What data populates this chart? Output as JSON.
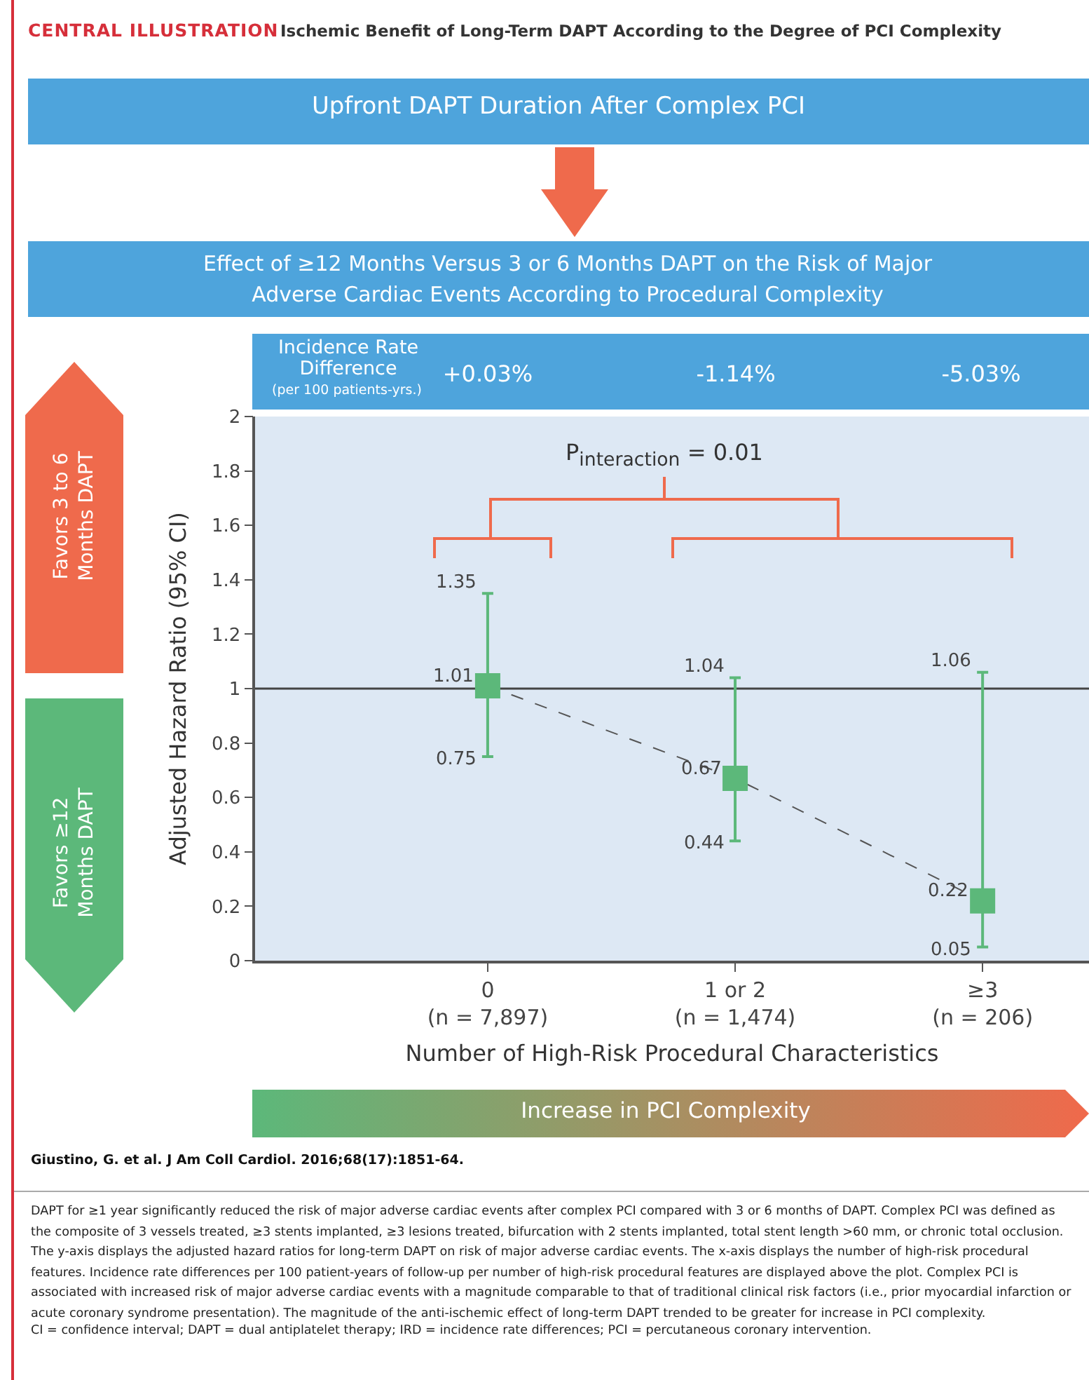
{
  "chart_data": {
    "type": "scatter",
    "title": "Ischemic Benefit of Long-Term DAPT According to the Degree of PCI Complexity",
    "xlabel": "Number of High-Risk Procedural Characteristics",
    "ylabel": "Adjusted Hazard Ratio (95% CI)",
    "categories": [
      "0\n(n = 7,897)",
      "1 or 2\n(n = 1,474)",
      "≥3\n(n = 206)"
    ],
    "series": [
      {
        "type": "line",
        "color": "#555555",
        "line_style": "dashed",
        "marker": "none",
        "values": [
          1.01,
          0.67,
          0.22
        ]
      },
      {
        "type": "scatter",
        "color": "#5cb87a",
        "marker": "square",
        "values": [
          1.01,
          0.67,
          0.22
        ],
        "errors": [
          [
            0.75,
            1.35
          ],
          [
            0.44,
            1.04
          ],
          [
            0.05,
            1.06
          ]
        ],
        "value_labels": [
          "1.01",
          "0.67",
          "0.22"
        ]
      }
    ],
    "ylim": [
      0,
      2
    ],
    "yticks": [
      0,
      0.2,
      0.4,
      0.6,
      0.8,
      1,
      1.2,
      1.4,
      1.6,
      1.8,
      2
    ],
    "grid": false,
    "ref_lines": [
      {
        "axis": "y",
        "value": 1,
        "color": "#444444"
      }
    ],
    "annotations": [
      "CENTRAL ILLUSTRATION",
      "Upfront DAPT Duration After Complex PCI",
      "Effect of ≥12 Months Versus 3 or 6 Months DAPT on the Risk of Major Adverse Cardiac Events According to Procedural Complexity",
      "Incidence Rate Difference",
      "(per 100 patients-yrs.)",
      "+0.03%",
      "-1.14%",
      "-5.03%",
      "P$_{interaction}$ = 0.01",
      "Favors 3 to 6 Months DAPT",
      "Favors ≥12 Months DAPT",
      "Increase in PCI Complexity",
      "Giustino, G. et al. J Am Coll Cardiol. 2016;68(17):1851-64.",
      "DAPT for ≥1 year significantly reduced the risk of major adverse cardiac events after complex PCI compared with 3 or 6 months of DAPT. Complex PCI was defined as the composite of 3 vessels treated, ≥3 stents implanted, ≥3 lesions treated, bifurcation with 2 stents implanted, total stent length >60 mm, or chronic total occlusion. The y-axis displays the adjusted hazard ratios for long-term DAPT on risk of major adverse cardiac events. The x-axis displays the number of high-risk procedural features. Incidence rate differences per 100 patient-years of follow-up per number of high-risk procedural features are displayed above the plot. Complex PCI is associated with increased risk of major adverse cardiac events with a magnitude comparable to that of traditional clinical risk factors (i.e., prior myocardial infarction or acute coronary syndrome presentation). The magnitude of the anti-ischemic effect of long-term DAPT trended to be greater for increase in PCI complexity.",
      "CI = confidence interval; DAPT = dual antiplatelet therapy; IRD = incidence rate differences; PCI = percutaneous coronary intervention.",
      {
        "text": "1.35",
        "x": "0\n(n = 7,897)",
        "y": 1.35
      },
      {
        "text": "0.75",
        "x": "0\n(n = 7,897)",
        "y": 0.75
      },
      {
        "text": "1.04",
        "x": "1 or 2\n(n = 1,474)",
        "y": 1.04
      },
      {
        "text": "0.44",
        "x": "1 or 2\n(n = 1,474)",
        "y": 0.44
      },
      {
        "text": "1.06",
        "x": "≥3\n(n = 206)",
        "y": 1.06
      },
      {
        "text": "0.05",
        "x": "≥3\n(n = 206)",
        "y": 0.05
      }
    ]
  }
}
